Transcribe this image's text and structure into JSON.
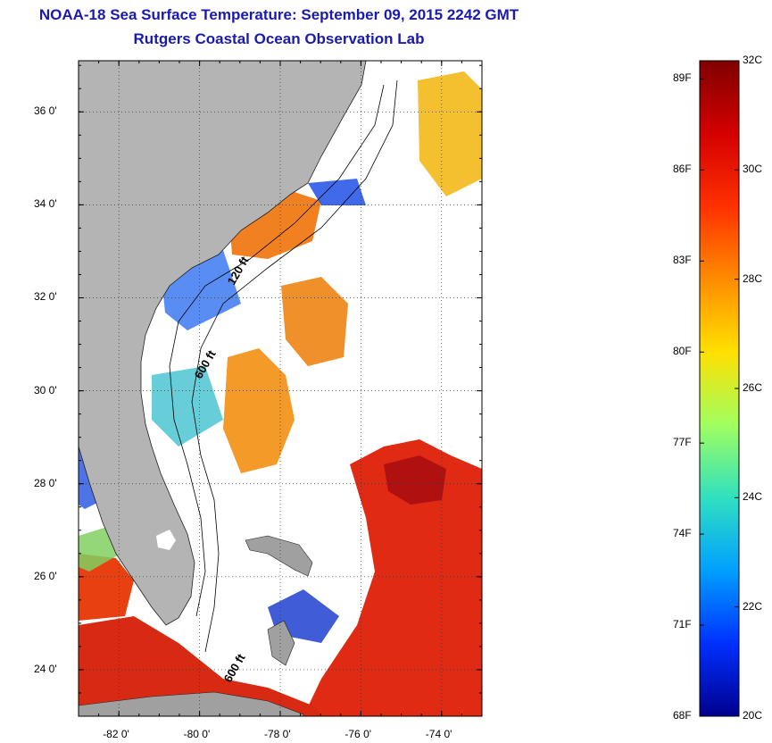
{
  "title": "NOAA-18 Sea Surface Temperature:  September 09, 2015 2242 GMT",
  "subtitle": "Rutgers Coastal Ocean Observation Lab",
  "map": {
    "lon_range": [
      -83,
      -73
    ],
    "lat_range": [
      23,
      37.1
    ],
    "lat_ticks": [
      {
        "value": 36,
        "label": "36 0'"
      },
      {
        "value": 34,
        "label": "34 0'"
      },
      {
        "value": 32,
        "label": "32 0'"
      },
      {
        "value": 30,
        "label": "30 0'"
      },
      {
        "value": 28,
        "label": "28 0'"
      },
      {
        "value": 26,
        "label": "26 0'"
      },
      {
        "value": 24,
        "label": "24 0'"
      }
    ],
    "lon_ticks": [
      {
        "value": -82,
        "label": "-82 0'"
      },
      {
        "value": -80,
        "label": "-80 0'"
      },
      {
        "value": -78,
        "label": "-78 0'"
      },
      {
        "value": -76,
        "label": "-76 0'"
      },
      {
        "value": -74,
        "label": "-74 0'"
      }
    ],
    "contour_labels": [
      "120 ft",
      "600 ft",
      "600 ft"
    ],
    "land_color": "#b4b4b4",
    "no_data_color": "#ffffff"
  },
  "colorbar": {
    "celsius": [
      "32C",
      "30C",
      "28C",
      "26C",
      "24C",
      "22C",
      "20C"
    ],
    "fahrenheit": [
      "89F",
      "86F",
      "83F",
      "80F",
      "77F",
      "74F",
      "71F",
      "68F"
    ],
    "range_c": [
      20,
      32
    ],
    "colors": [
      "#800000",
      "#d40000",
      "#ff3000",
      "#ff8c00",
      "#ffe000",
      "#a0ff60",
      "#30e0c0",
      "#00a0ff",
      "#0030ff",
      "#00008f"
    ]
  }
}
